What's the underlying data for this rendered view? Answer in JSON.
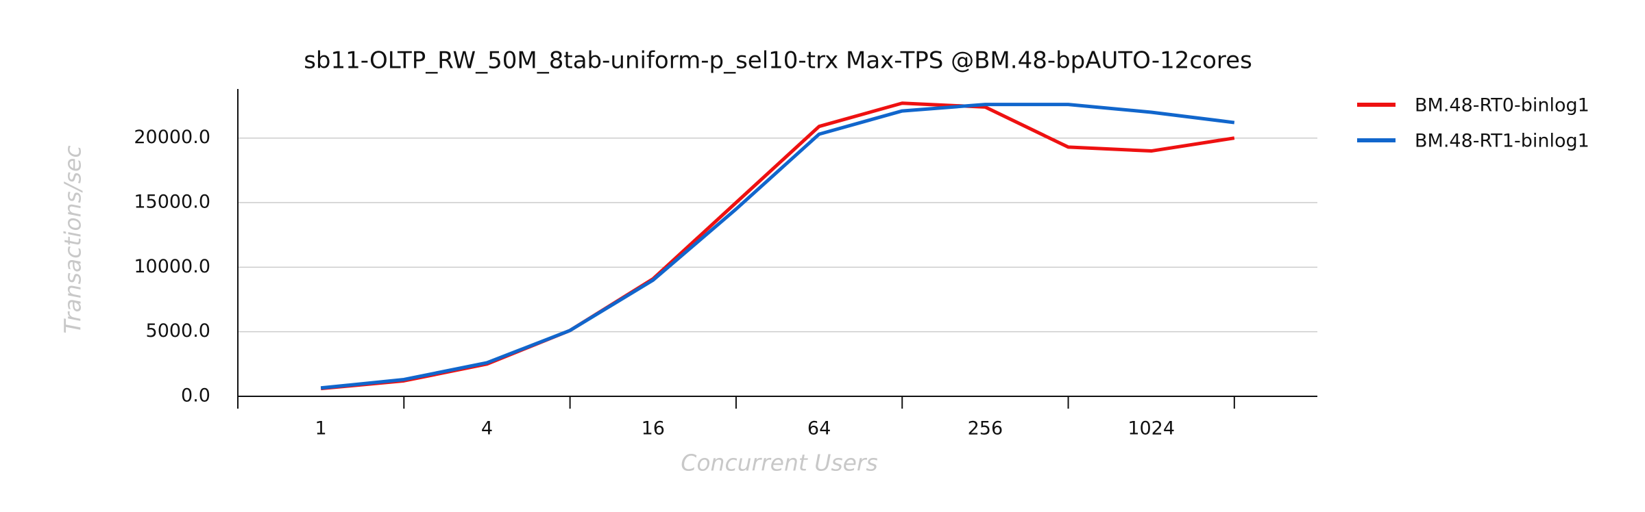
{
  "chart_data": {
    "type": "line",
    "title": "sb11-OLTP_RW_50M_8tab-uniform-p_sel10-trx Max-TPS @BM.48-bpAUTO-12cores",
    "xlabel": "Concurrent Users",
    "ylabel": "Transactions/sec",
    "categories": [
      "1",
      null,
      "4",
      null,
      "16",
      null,
      "64",
      null,
      "256",
      null,
      "1024",
      null
    ],
    "series": [
      {
        "name": "BM.48-RT0-binlog1",
        "color": "#ee1111",
        "values": [
          600,
          1200,
          2500,
          5100,
          9100,
          15000,
          20900,
          22700,
          22400,
          19300,
          19000,
          20000
        ]
      },
      {
        "name": "BM.48-RT1-binlog1",
        "color": "#1166cc",
        "values": [
          650,
          1300,
          2600,
          5100,
          9000,
          14500,
          20300,
          22100,
          22600,
          22600,
          22000,
          21200
        ]
      }
    ],
    "ylim": [
      0,
      23800
    ],
    "yticks": [
      {
        "value": 0,
        "label": "0.0"
      },
      {
        "value": 5000,
        "label": "5000.0"
      },
      {
        "value": 10000,
        "label": "10000.0"
      },
      {
        "value": 15000,
        "label": "15000.0"
      },
      {
        "value": 20000,
        "label": "20000.0"
      }
    ],
    "grid": true,
    "legend": "outside-right"
  }
}
